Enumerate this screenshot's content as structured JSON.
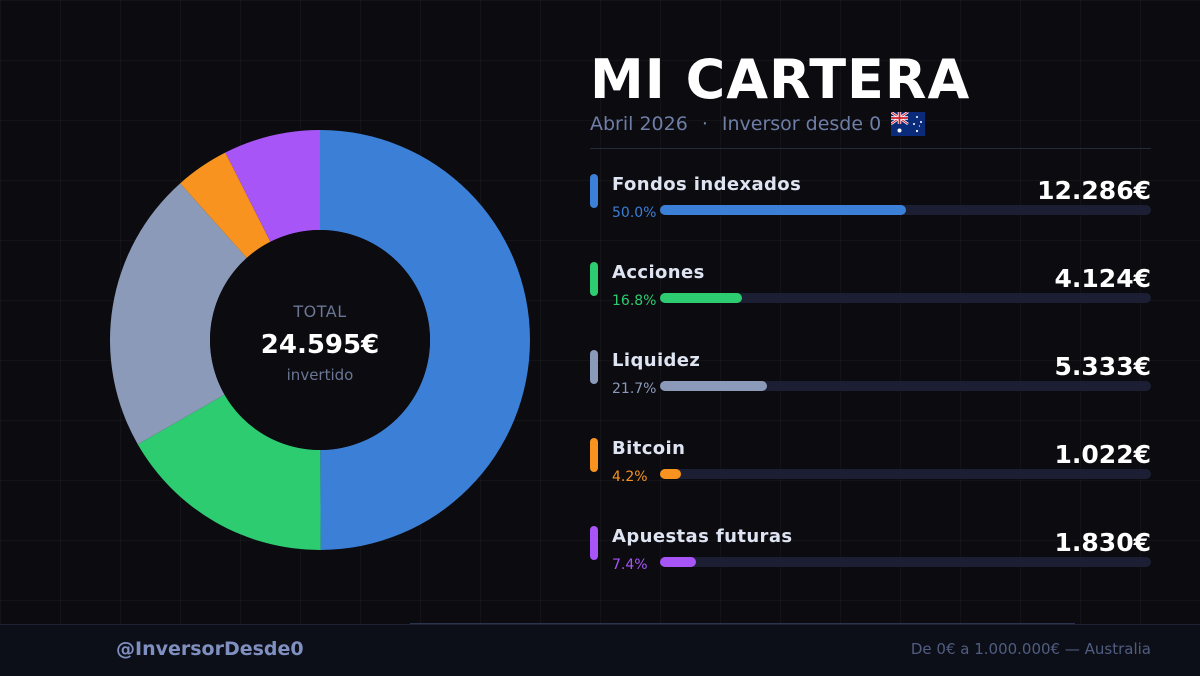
{
  "header": {
    "title": "MI CARTERA",
    "month": "Abril 2026",
    "separator": "·",
    "investor_label": "Inversor desde 0",
    "flag_icon": "australia-flag-icon"
  },
  "donut_center": {
    "label": "TOTAL",
    "total": "24.595€",
    "sub": "invertido"
  },
  "chart_data": {
    "type": "pie",
    "title": "MI CARTERA",
    "donut": true,
    "total": 24595,
    "unit": "€",
    "categories": [
      "Fondos indexados",
      "Acciones",
      "Liquidez",
      "Bitcoin",
      "Apuestas futuras"
    ],
    "values": [
      12286,
      4124,
      5333,
      1022,
      1830
    ],
    "percentages": [
      50.0,
      16.8,
      21.7,
      4.2,
      7.4
    ],
    "colors": [
      "#3b7fd6",
      "#2ecc71",
      "#8b9ab9",
      "#f7931e",
      "#a855f7"
    ],
    "start_angle_deg": 0,
    "direction": "clockwise"
  },
  "assets": [
    {
      "name": "Fondos indexados",
      "value": "12.286€",
      "pct": "50.0%",
      "fraction": 0.5,
      "color": "#3b7fd6"
    },
    {
      "name": "Acciones",
      "value": "4.124€",
      "pct": "16.8%",
      "fraction": 0.168,
      "color": "#2ecc71"
    },
    {
      "name": "Liquidez",
      "value": "5.333€",
      "pct": "21.7%",
      "fraction": 0.217,
      "color": "#8b9ab9"
    },
    {
      "name": "Bitcoin",
      "value": "1.022€",
      "pct": "4.2%",
      "fraction": 0.042,
      "color": "#f7931e"
    },
    {
      "name": "Apuestas futuras",
      "value": "1.830€",
      "pct": "7.4%",
      "fraction": 0.074,
      "color": "#a855f7"
    }
  ],
  "footer": {
    "handle": "@InversorDesde0",
    "tagline": "De 0€ a 1.000.000€ — Australia"
  }
}
